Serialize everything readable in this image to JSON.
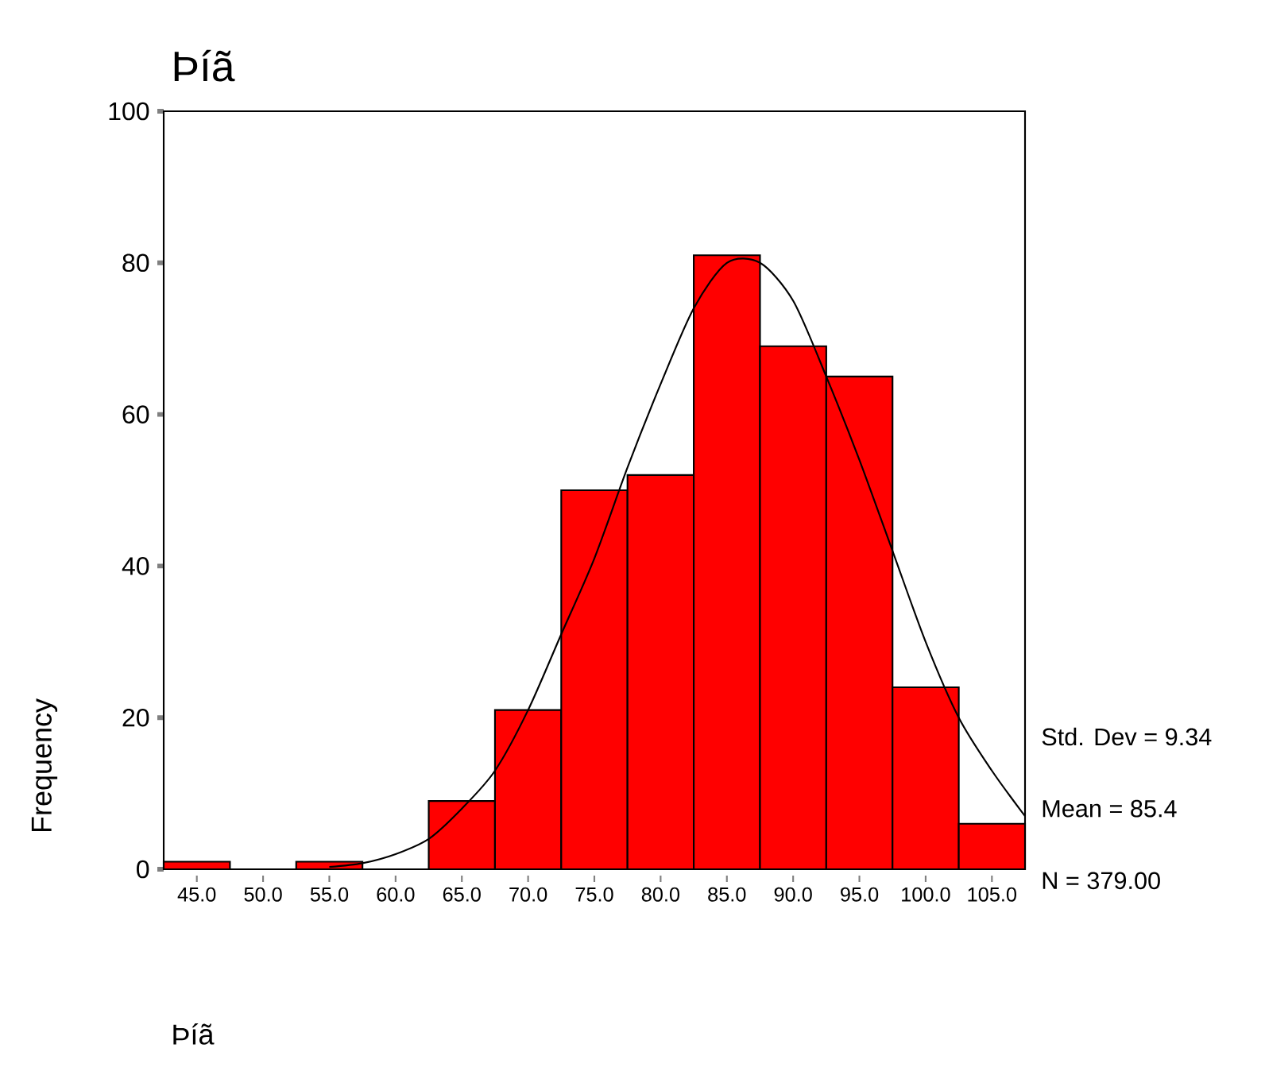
{
  "chart_data": {
    "type": "histogram",
    "title": "Þíã",
    "xlabel": "Þíã",
    "ylabel": "Frequency",
    "bins": [
      42.5,
      47.5,
      52.5,
      57.5,
      62.5,
      67.5,
      72.5,
      77.5,
      82.5,
      87.5,
      92.5,
      97.5,
      102.5,
      107.5
    ],
    "values": [
      1,
      0,
      1,
      0,
      9,
      21,
      50,
      52,
      81,
      69,
      65,
      24,
      6
    ],
    "color": "#ff0000",
    "series": [
      {
        "type": "line",
        "color": "#000000",
        "x": [
          55,
          57.5,
          60,
          62.5,
          65,
          67.5,
          70,
          72.5,
          75,
          77.5,
          80,
          82.5,
          85,
          87.5,
          90,
          92.5,
          95,
          97.5,
          100,
          102.5,
          105,
          107.5
        ],
        "values": [
          0.3,
          0.8,
          2,
          4,
          8,
          13,
          21,
          31,
          41,
          53,
          64,
          74,
          80,
          80,
          75,
          65,
          54,
          42,
          30,
          20,
          13,
          7
        ]
      }
    ],
    "xlim": [
      42.5,
      107.5
    ],
    "ylim": [
      0,
      100
    ],
    "xticks": [
      {
        "value": 45,
        "label": "45.0"
      },
      {
        "value": 50,
        "label": "50.0"
      },
      {
        "value": 55,
        "label": "55.0"
      },
      {
        "value": 60,
        "label": "60.0"
      },
      {
        "value": 65,
        "label": "65.0"
      },
      {
        "value": 70,
        "label": "70.0"
      },
      {
        "value": 75,
        "label": "75.0"
      },
      {
        "value": 80,
        "label": "80.0"
      },
      {
        "value": 85,
        "label": "85.0"
      },
      {
        "value": 90,
        "label": "90.0"
      },
      {
        "value": 95,
        "label": "95.0"
      },
      {
        "value": 100,
        "label": "100.0"
      },
      {
        "value": 105,
        "label": "105.0"
      }
    ],
    "yticks": [
      0,
      20,
      40,
      60,
      80,
      100
    ],
    "annotations": [
      "Std. Dev = 9.34",
      "Mean = 85.4",
      "N = 379.00"
    ]
  }
}
